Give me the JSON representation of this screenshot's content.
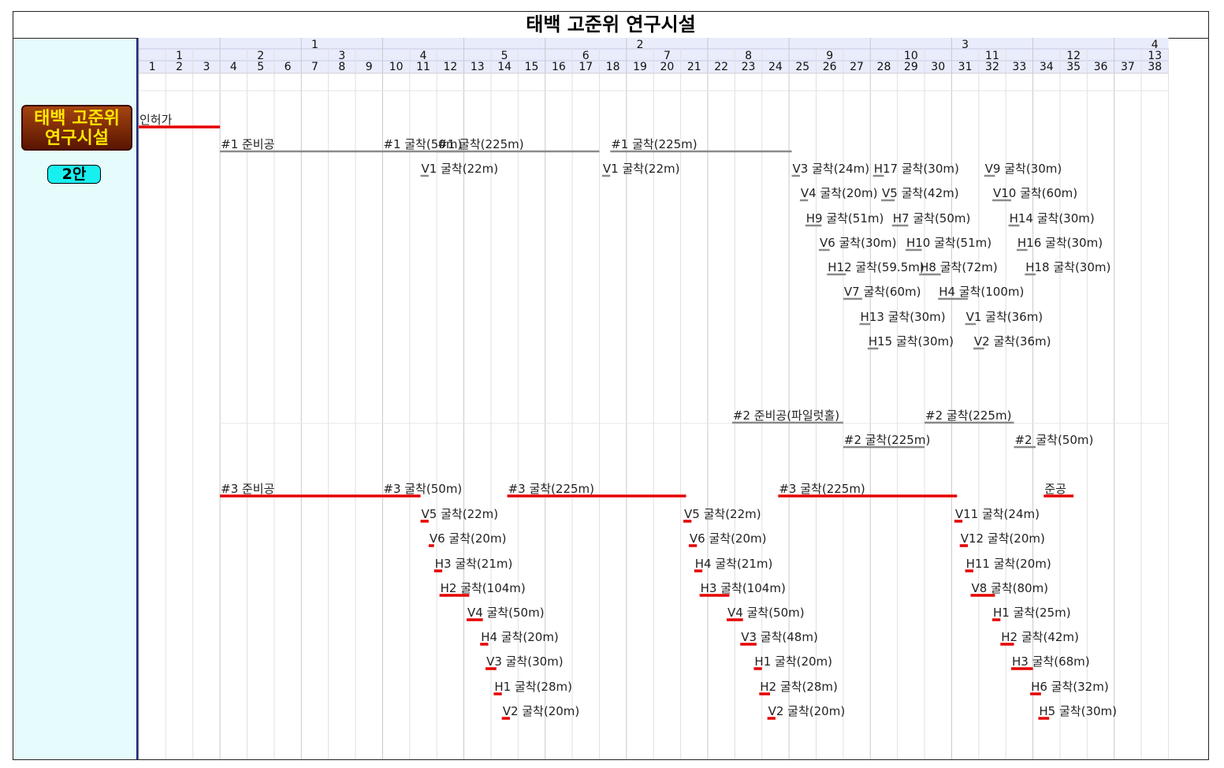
{
  "title": "태백 고준위 연구시설",
  "badge": {
    "line1": "태백 고준위",
    "line2": "연구시설"
  },
  "plan_label": "2안",
  "colors": {
    "red": "#e60000",
    "gray": "#8a8a8a",
    "header_bg": "#e9ecfb",
    "panel_bg": "#e6fbfb"
  },
  "timeline": {
    "months": 38,
    "year_labels": [
      {
        "label": "1",
        "center": 6.5
      },
      {
        "label": "2",
        "center": 18.5
      },
      {
        "label": "3",
        "center": 30.5
      },
      {
        "label": "4",
        "center": 37.5
      }
    ],
    "quarter_labels": [
      "1",
      "2",
      "3",
      "4",
      "5",
      "6",
      "7",
      "8",
      "9",
      "10",
      "11",
      "12",
      "13"
    ],
    "month_labels": [
      "1",
      "2",
      "3",
      "4",
      "5",
      "6",
      "7",
      "8",
      "9",
      "10",
      "11",
      "12",
      "13",
      "14",
      "15",
      "16",
      "17",
      "18",
      "19",
      "20",
      "21",
      "22",
      "23",
      "24",
      "25",
      "26",
      "27",
      "28",
      "29",
      "30",
      "31",
      "32",
      "33",
      "34",
      "35",
      "36",
      "37",
      "38"
    ]
  },
  "tasks": [
    {
      "label": "인허가",
      "start": 0,
      "end": 3,
      "row": 0,
      "color": "red"
    },
    {
      "label": "#1 준비공",
      "start": 3,
      "end": 9,
      "row": 1,
      "color": "gray"
    },
    {
      "label": "#1 굴착(50m)",
      "start": 9,
      "end": 12,
      "row": 1,
      "color": "gray"
    },
    {
      "label": "#1 굴착(225m)",
      "start": 11,
      "end": 17,
      "row": 1,
      "color": "gray"
    },
    {
      "label": "#1 굴착(225m)",
      "start": 17.4,
      "end": 24.1,
      "row": 1,
      "color": "gray"
    },
    {
      "label": "V1 굴착(22m)",
      "start": 10.4,
      "end": 10.7,
      "row": 2,
      "color": "gray"
    },
    {
      "label": "V1 굴착(22m)",
      "start": 17.1,
      "end": 17.4,
      "row": 2,
      "color": "gray"
    },
    {
      "label": "V3 굴착(24m)",
      "start": 24.1,
      "end": 24.4,
      "row": 2,
      "color": "gray"
    },
    {
      "label": "H17 굴착(30m)",
      "start": 27.1,
      "end": 27.5,
      "row": 2,
      "color": "gray"
    },
    {
      "label": "V9 굴착(30m)",
      "start": 31.2,
      "end": 31.6,
      "row": 2,
      "color": "gray"
    },
    {
      "label": "V4 굴착(20m)",
      "start": 24.4,
      "end": 24.7,
      "row": 3,
      "color": "gray"
    },
    {
      "label": "V5 굴착(42m)",
      "start": 27.4,
      "end": 27.9,
      "row": 3,
      "color": "gray"
    },
    {
      "label": "V10 굴착(60m)",
      "start": 31.5,
      "end": 32.2,
      "row": 3,
      "color": "gray"
    },
    {
      "label": "H9 굴착(51m)",
      "start": 24.6,
      "end": 25.2,
      "row": 4,
      "color": "gray"
    },
    {
      "label": "H7 굴착(50m)",
      "start": 27.8,
      "end": 28.4,
      "row": 4,
      "color": "gray"
    },
    {
      "label": "H14 굴착(30m)",
      "start": 32.1,
      "end": 32.5,
      "row": 4,
      "color": "gray"
    },
    {
      "label": "V6 굴착(30m)",
      "start": 25.1,
      "end": 25.5,
      "row": 5,
      "color": "gray"
    },
    {
      "label": "H10 굴착(51m)",
      "start": 28.3,
      "end": 28.9,
      "row": 5,
      "color": "gray"
    },
    {
      "label": "H16 굴착(30m)",
      "start": 32.4,
      "end": 32.8,
      "row": 5,
      "color": "gray"
    },
    {
      "label": "H12 굴착(59.5m)",
      "start": 25.4,
      "end": 26.1,
      "row": 6,
      "color": "gray"
    },
    {
      "label": "H8 굴착(72m)",
      "start": 28.8,
      "end": 29.6,
      "row": 6,
      "color": "gray"
    },
    {
      "label": "H18 굴착(30m)",
      "start": 32.7,
      "end": 33.1,
      "row": 6,
      "color": "gray"
    },
    {
      "label": "V7 굴착(60m)",
      "start": 26.0,
      "end": 26.7,
      "row": 7,
      "color": "gray"
    },
    {
      "label": "H4 굴착(100m)",
      "start": 29.5,
      "end": 30.6,
      "row": 7,
      "color": "gray"
    },
    {
      "label": "H13 굴착(30m)",
      "start": 26.6,
      "end": 27.0,
      "row": 8,
      "color": "gray"
    },
    {
      "label": "V1 굴착(36m)",
      "start": 30.5,
      "end": 30.9,
      "row": 8,
      "color": "gray"
    },
    {
      "label": "H15 굴착(30m)",
      "start": 26.9,
      "end": 27.3,
      "row": 9,
      "color": "gray"
    },
    {
      "label": "V2 굴착(36m)",
      "start": 30.8,
      "end": 31.2,
      "row": 9,
      "color": "gray"
    },
    {
      "label": "#2 준비공(파일럿홀)",
      "start": 21.9,
      "end": 26.0,
      "row": 10,
      "color": "gray"
    },
    {
      "label": "#2 굴착(225m)",
      "start": 29.0,
      "end": 32.3,
      "row": 10,
      "color": "gray"
    },
    {
      "label": "#2 굴착(225m)",
      "start": 26.0,
      "end": 29.0,
      "row": 11,
      "color": "gray"
    },
    {
      "label": "#2 굴착(50m)",
      "start": 32.3,
      "end": 33.1,
      "row": 11,
      "color": "gray"
    },
    {
      "label": "#3 준비공",
      "start": 3,
      "end": 9,
      "row": 12,
      "color": "red"
    },
    {
      "label": "#3 굴착(50m)",
      "start": 9,
      "end": 10.4,
      "row": 12,
      "color": "red"
    },
    {
      "label": "#3 굴착(225m)",
      "start": 13.6,
      "end": 20.2,
      "row": 12,
      "color": "red"
    },
    {
      "label": "#3 굴착(225m)",
      "start": 23.6,
      "end": 30.2,
      "row": 12,
      "color": "red"
    },
    {
      "label": "준공",
      "start": 33.4,
      "end": 34.5,
      "row": 12,
      "color": "red"
    },
    {
      "label": "V5 굴착(22m)",
      "start": 10.4,
      "end": 10.7,
      "row": 13,
      "color": "red"
    },
    {
      "label": "V5 굴착(22m)",
      "start": 20.1,
      "end": 20.4,
      "row": 13,
      "color": "red"
    },
    {
      "label": "V11 굴착(24m)",
      "start": 30.1,
      "end": 30.4,
      "row": 13,
      "color": "red"
    },
    {
      "label": "V6 굴착(20m)",
      "start": 10.7,
      "end": 10.9,
      "row": 14,
      "color": "red"
    },
    {
      "label": "V6 굴착(20m)",
      "start": 20.3,
      "end": 20.6,
      "row": 14,
      "color": "red"
    },
    {
      "label": "V12 굴착(20m)",
      "start": 30.3,
      "end": 30.6,
      "row": 14,
      "color": "red"
    },
    {
      "label": "H3 굴착(21m)",
      "start": 10.9,
      "end": 11.2,
      "row": 15,
      "color": "red"
    },
    {
      "label": "H4 굴착(21m)",
      "start": 20.5,
      "end": 20.8,
      "row": 15,
      "color": "red"
    },
    {
      "label": "H11 굴착(20m)",
      "start": 30.5,
      "end": 30.8,
      "row": 15,
      "color": "red"
    },
    {
      "label": "H2 굴착(104m)",
      "start": 11.1,
      "end": 12.2,
      "row": 16,
      "color": "red"
    },
    {
      "label": "H3 굴착(104m)",
      "start": 20.7,
      "end": 21.8,
      "row": 16,
      "color": "red"
    },
    {
      "label": "V8 굴착(80m)",
      "start": 30.7,
      "end": 31.6,
      "row": 16,
      "color": "red"
    },
    {
      "label": "V4 굴착(50m)",
      "start": 12.1,
      "end": 12.7,
      "row": 17,
      "color": "red"
    },
    {
      "label": "V4 굴착(50m)",
      "start": 21.7,
      "end": 22.3,
      "row": 17,
      "color": "red"
    },
    {
      "label": "H1 굴착(25m)",
      "start": 31.5,
      "end": 31.8,
      "row": 17,
      "color": "red"
    },
    {
      "label": "H4 굴착(20m)",
      "start": 12.6,
      "end": 12.9,
      "row": 18,
      "color": "red"
    },
    {
      "label": "V3 굴착(48m)",
      "start": 22.2,
      "end": 22.8,
      "row": 18,
      "color": "red"
    },
    {
      "label": "H2 굴착(42m)",
      "start": 31.8,
      "end": 32.3,
      "row": 18,
      "color": "red"
    },
    {
      "label": "V3 굴착(30m)",
      "start": 12.8,
      "end": 13.2,
      "row": 19,
      "color": "red"
    },
    {
      "label": "H1 굴착(20m)",
      "start": 22.7,
      "end": 23.0,
      "row": 19,
      "color": "red"
    },
    {
      "label": "H3 굴착(68m)",
      "start": 32.2,
      "end": 33.0,
      "row": 19,
      "color": "red"
    },
    {
      "label": "H1 굴착(28m)",
      "start": 13.1,
      "end": 13.4,
      "row": 20,
      "color": "red"
    },
    {
      "label": "H2 굴착(28m)",
      "start": 22.9,
      "end": 23.3,
      "row": 20,
      "color": "red"
    },
    {
      "label": "H6 굴착(32m)",
      "start": 32.9,
      "end": 33.3,
      "row": 20,
      "color": "red"
    },
    {
      "label": "V2 굴착(20m)",
      "start": 13.4,
      "end": 13.7,
      "row": 21,
      "color": "red"
    },
    {
      "label": "V2 굴착(20m)",
      "start": 23.2,
      "end": 23.5,
      "row": 21,
      "color": "red"
    },
    {
      "label": "H5 굴착(30m)",
      "start": 33.2,
      "end": 33.6,
      "row": 21,
      "color": "red"
    }
  ]
}
